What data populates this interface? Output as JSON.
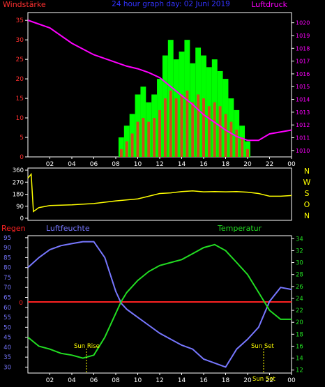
{
  "panel1": {
    "label_left": "Windstärke",
    "title": "24 hour graph day: 02 Juni 2019",
    "label_right": "Luftdruck",
    "colors": {
      "wind": "#ff2222",
      "gust": "#00ff00",
      "pressure": "#ff00ff",
      "left_axis": "#ff3030",
      "right_axis": "#ff00ff",
      "title": "#3333ff"
    }
  },
  "panel2": {
    "direction_letters": [
      "N",
      "W",
      "S",
      "O",
      "N"
    ],
    "colors": {
      "direction": "#ffff00",
      "letters": "#ffff00"
    }
  },
  "panel3": {
    "label_rain": "Regen",
    "label_humidity": "Luftfeuchte",
    "label_temp": "Temperatur",
    "rain_axis_value": "0",
    "annotations": [
      "Sun Rise",
      "Sun Set",
      "Sun Set"
    ],
    "colors": {
      "humidity": "#7777ff",
      "temperature": "#22dd22",
      "rain": "#ff2222",
      "annot": "#ffff00"
    }
  },
  "chart_data": [
    {
      "type": "bar",
      "title": "24 hour graph day: 02 Juni 2019",
      "ylabel": "Windstärke",
      "y2label": "Luftdruck",
      "x_ticks": [
        "02",
        "04",
        "06",
        "08",
        "10",
        "12",
        "14",
        "16",
        "18",
        "20",
        "22",
        "00"
      ],
      "ylim": [
        0,
        37
      ],
      "yticks": [
        0,
        5,
        10,
        15,
        20,
        25,
        30,
        35
      ],
      "y2lim": [
        1009.5,
        1020.8
      ],
      "y2ticks": [
        1010,
        1011,
        1012,
        1013,
        1014,
        1015,
        1016,
        1017,
        1018,
        1019,
        1020
      ],
      "hours": [
        0,
        2,
        4,
        6,
        8,
        9,
        10,
        11,
        12,
        13,
        14,
        15,
        16,
        17,
        18,
        19,
        20,
        21,
        22,
        24
      ],
      "pressure": [
        1020.2,
        1019.6,
        1018.4,
        1017.5,
        1016.9,
        1016.6,
        1016.4,
        1016.1,
        1015.7,
        1015.0,
        1014.3,
        1013.6,
        1012.8,
        1012.2,
        1011.6,
        1011.1,
        1010.8,
        1010.8,
        1011.3,
        1011.6
      ],
      "gust_hours": [
        8.5,
        9,
        9.5,
        10,
        10.5,
        11,
        11.5,
        12,
        12.5,
        13,
        13.5,
        14,
        14.5,
        15,
        15.5,
        16,
        16.5,
        17,
        17.5,
        18,
        18.5,
        19,
        19.5,
        20
      ],
      "gust": [
        5,
        8,
        11,
        16,
        18,
        14,
        16,
        20,
        26,
        30,
        25,
        27,
        30,
        24,
        28,
        26,
        23,
        25,
        22,
        20,
        15,
        12,
        8,
        4
      ],
      "wind": [
        2,
        4,
        6,
        9,
        10,
        9,
        10,
        12,
        15,
        17,
        15,
        16,
        17,
        14,
        16,
        15,
        13,
        14,
        13,
        11,
        9,
        7,
        5,
        2
      ]
    },
    {
      "type": "line",
      "series_label": "direction",
      "x_ticks": [
        "02",
        "04",
        "06",
        "08",
        "10",
        "12",
        "14",
        "16",
        "18",
        "20",
        "22",
        "00"
      ],
      "ylim": [
        0,
        360
      ],
      "yticks": [
        0,
        90,
        180,
        270,
        360
      ],
      "hours": [
        0,
        0.3,
        0.5,
        1,
        2,
        4,
        6,
        8,
        10,
        11,
        12,
        13,
        14,
        15,
        16,
        17,
        18,
        19,
        20,
        21,
        22,
        23,
        24
      ],
      "direction": [
        300,
        330,
        50,
        80,
        95,
        100,
        110,
        130,
        145,
        165,
        185,
        190,
        200,
        205,
        198,
        200,
        198,
        200,
        195,
        185,
        165,
        165,
        170
      ]
    },
    {
      "type": "line",
      "x_ticks": [
        "02",
        "04",
        "06",
        "08",
        "10",
        "12",
        "14",
        "16",
        "18",
        "20",
        "22",
        "00"
      ],
      "ylabel": "Luftfeuchte",
      "y2label": "Temperatur",
      "ylim": [
        27,
        96
      ],
      "yticks": [
        30,
        35,
        40,
        45,
        50,
        55,
        60,
        65,
        70,
        75,
        80,
        85,
        90,
        95
      ],
      "y2lim": [
        11.5,
        34.5
      ],
      "y2ticks": [
        12,
        14,
        16,
        18,
        20,
        22,
        24,
        26,
        28,
        30,
        32,
        34
      ],
      "hours": [
        0,
        1,
        2,
        3,
        4,
        5,
        6,
        7,
        8,
        8.5,
        9,
        10,
        11,
        12,
        13,
        14,
        15,
        16,
        17,
        18,
        19,
        20,
        21,
        22,
        23,
        24
      ],
      "humidity": [
        80,
        85,
        89,
        91,
        92,
        93,
        93,
        85,
        68,
        62,
        59,
        55,
        51,
        47,
        44,
        41,
        39,
        34,
        32,
        30,
        39,
        44,
        50,
        63,
        70,
        69
      ],
      "temperature": [
        17.5,
        16.0,
        15.5,
        14.8,
        14.5,
        14.0,
        14.5,
        17.5,
        21.5,
        23.5,
        25.0,
        27.0,
        28.5,
        29.5,
        30.0,
        30.5,
        31.5,
        32.5,
        33.0,
        32.0,
        30.0,
        28.0,
        25.0,
        22.0,
        20.5,
        20.5
      ],
      "rain": 0
    }
  ]
}
